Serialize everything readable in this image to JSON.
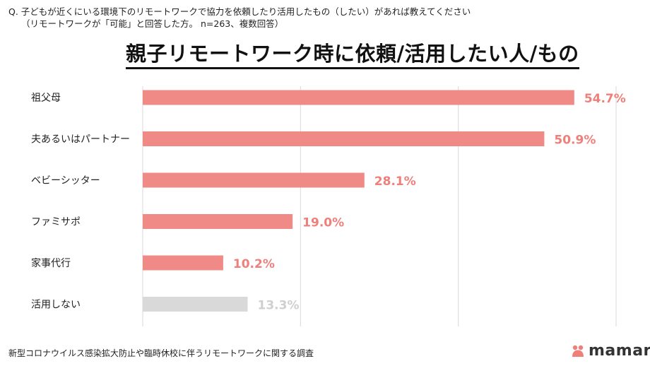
{
  "question": {
    "line1": "Q.  子どもが近くにいる環境下のリモートワークで協力を依頼したり活用したもの（したい）があれば教えてください",
    "line2": "（リモートワークが「可能」と回答した方。 n=263、複数回答）"
  },
  "footer": {
    "note": "新型コロナウイルス感染拡大防止や臨時休校に伴うリモートワークに関する調査"
  },
  "brand": {
    "name": "mamari",
    "icon": "mamari-logo-icon"
  },
  "colors": {
    "bar": "#f08a86",
    "label_value": "#ef7f7a",
    "bar_none": "#d9d9d9",
    "label_value_none": "#cfcfcf",
    "grid": "#d9d9d9"
  },
  "chart_data": {
    "type": "bar",
    "orientation": "horizontal",
    "title": "親子リモートワーク時に依頼/活用したい人/もの",
    "categories": [
      "祖父母",
      "夫あるいはパートナー",
      "ベビーシッター",
      "ファミサポ",
      "家事代行",
      "活用しない"
    ],
    "values": [
      54.7,
      50.9,
      28.1,
      19.0,
      10.2,
      13.3
    ],
    "value_labels": [
      "54.7%",
      "50.9%",
      "28.1%",
      "19.0%",
      "10.2%",
      "13.3%"
    ],
    "xlim": [
      0,
      60
    ],
    "grid": true,
    "grid_ticks": [
      0,
      20,
      40,
      60
    ]
  }
}
